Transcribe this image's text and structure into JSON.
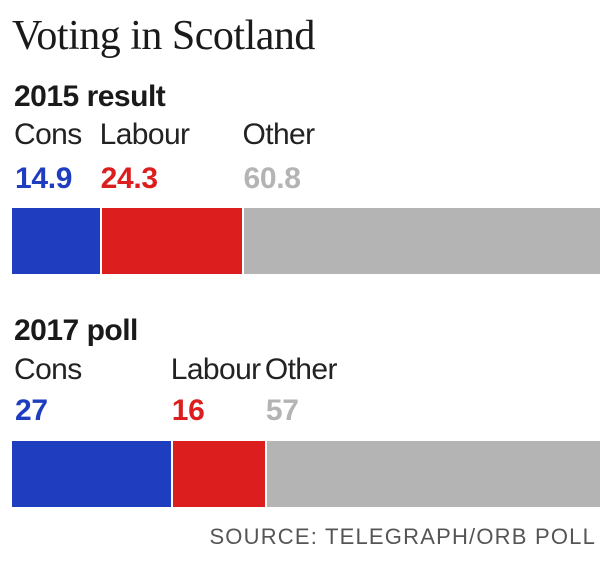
{
  "chart_data": {
    "type": "bar",
    "title": "Voting in Scotland",
    "source": "SOURCE: TELEGRAPH/ORB POLL",
    "series_names": [
      "Cons",
      "Labour",
      "Other"
    ],
    "colors": {
      "Cons": "#1f3dbf",
      "Labour": "#dc1e1e",
      "Other": "#b4b4b4"
    },
    "panels": [
      {
        "title": "2015 result",
        "categories": [
          "Cons",
          "Labour",
          "Other"
        ],
        "values": [
          14.9,
          24.3,
          60.8
        ],
        "value_labels": [
          "14.9",
          "24.3",
          "60.8"
        ]
      },
      {
        "title": "2017 poll",
        "categories": [
          "Cons",
          "Labour",
          "Other"
        ],
        "values": [
          27,
          16,
          57
        ],
        "value_labels": [
          "27",
          "16",
          "57"
        ]
      }
    ]
  }
}
